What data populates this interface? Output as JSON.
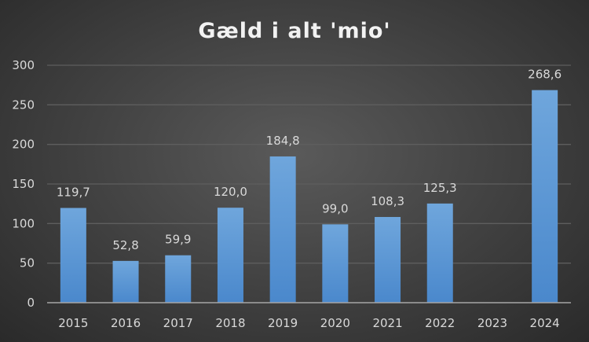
{
  "chart_data": {
    "type": "bar",
    "title": "Gæld i alt 'mio'",
    "xlabel": "",
    "ylabel": "",
    "categories": [
      "2015",
      "2016",
      "2017",
      "2018",
      "2019",
      "2020",
      "2021",
      "2022",
      "2023",
      "2024"
    ],
    "values": [
      119.7,
      52.8,
      59.9,
      120.0,
      184.8,
      99.0,
      108.3,
      125.3,
      null,
      268.6
    ],
    "data_labels": [
      "119,7",
      "52,8",
      "59,9",
      "120,0",
      "184,8",
      "99,0",
      "108,3",
      "125,3",
      "",
      "268,6"
    ],
    "ylim": [
      0,
      300
    ],
    "yticks": [
      0,
      50,
      100,
      150,
      200,
      250,
      300
    ],
    "grid": true,
    "legend": "none",
    "colors": {
      "bar_top": "#6fa6dc",
      "bar_bottom": "#4a88cc",
      "grid": "#5e5e5e",
      "axis": "#a6a6a6"
    }
  }
}
